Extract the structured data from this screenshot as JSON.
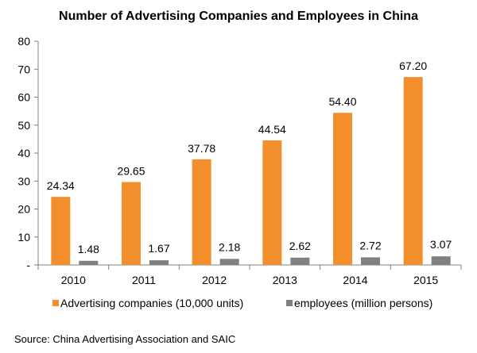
{
  "chart_data": {
    "type": "bar",
    "title": "Number of Advertising Companies and Employees  in China",
    "categories": [
      "2010",
      "2011",
      "2012",
      "2013",
      "2014",
      "2015"
    ],
    "series": [
      {
        "name": "Advertising companies (10,000 units)",
        "values": [
          24.34,
          29.65,
          37.78,
          44.54,
          54.4,
          67.2
        ],
        "labels": [
          "24.34",
          "29.65",
          "37.78",
          "44.54",
          "54.40",
          "67.20"
        ],
        "color": "#f28e2b"
      },
      {
        "name": "employees (million persons)",
        "values": [
          1.48,
          1.67,
          2.18,
          2.62,
          2.72,
          3.07
        ],
        "labels": [
          "1.48",
          "1.67",
          "2.18",
          "2.62",
          "2.72",
          "3.07"
        ],
        "color": "#808080"
      }
    ],
    "ylim": [
      0,
      80
    ],
    "yticks": [
      0,
      10,
      20,
      30,
      40,
      50,
      60,
      70,
      80
    ],
    "ytick_labels": [
      "-",
      "10",
      "20",
      "30",
      "40",
      "50",
      "60",
      "70",
      "80"
    ],
    "grid": false,
    "legend_position": "bottom",
    "xlabel": "",
    "ylabel": ""
  },
  "source": "Source: China Advertising Association and SAIC"
}
